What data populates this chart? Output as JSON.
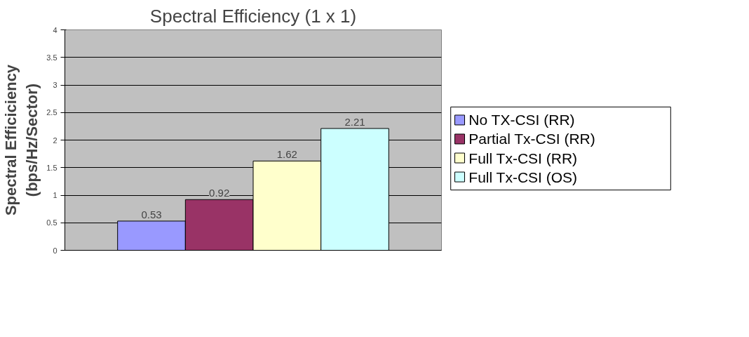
{
  "chart_data": {
    "type": "bar",
    "title": "Spectral Efficiency (1 x 1)",
    "ylabel": "Spectral Efficiciency\n(bps/Hz/Sector)",
    "categories": [
      null
    ],
    "series": [
      {
        "name": "No TX-CSI (RR)",
        "color": "#9999ff",
        "values": [
          0.53
        ]
      },
      {
        "name": "Partial Tx-CSI (RR)",
        "color": "#993366",
        "values": [
          0.92
        ]
      },
      {
        "name": "Full Tx-CSI (RR)",
        "color": "#ffffcc",
        "values": [
          1.62
        ]
      },
      {
        "name": "Full Tx-CSI (OS)",
        "color": "#ccffff",
        "values": [
          2.21
        ]
      }
    ],
    "ylim": [
      0,
      4
    ],
    "yticks": [
      0,
      0.5,
      1,
      1.5,
      2,
      2.5,
      3,
      3.5,
      4
    ],
    "grid": "y",
    "legend": "right",
    "data_labels": true
  }
}
